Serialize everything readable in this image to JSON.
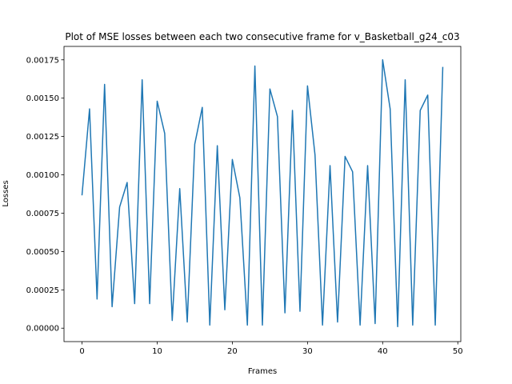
{
  "chart_data": {
    "type": "line",
    "title": "Plot of MSE losses between each two consecutive frame for v_Basketball_g24_c03",
    "xlabel": "Frames",
    "ylabel": "Losses",
    "xlim": [
      -2.4,
      50.4
    ],
    "ylim": [
      -8.75e-05,
      0.0018375
    ],
    "xticks": [
      0,
      10,
      20,
      30,
      40,
      50
    ],
    "xtick_labels": [
      "0",
      "10",
      "20",
      "30",
      "40",
      "50"
    ],
    "yticks": [
      0,
      0.00025,
      0.0005,
      0.00075,
      0.001,
      0.00125,
      0.0015,
      0.00175
    ],
    "ytick_labels": [
      "0.00000",
      "0.00025",
      "0.00050",
      "0.00075",
      "0.00100",
      "0.00125",
      "0.00150",
      "0.00175"
    ],
    "grid": false,
    "line_color": "#1f77b4",
    "series": [
      {
        "x": [
          0,
          1,
          2,
          3,
          4,
          5,
          6,
          7,
          8,
          9,
          10,
          11,
          12,
          13,
          14,
          15,
          16,
          17,
          18,
          19,
          20,
          21,
          22,
          23,
          24,
          25,
          26,
          27,
          28,
          29,
          30,
          31,
          32,
          33,
          34,
          35,
          36,
          37,
          38,
          39,
          40,
          41,
          42,
          43,
          44,
          45,
          46,
          47,
          48
        ],
        "values": [
          0.00087,
          0.00143,
          0.00019,
          0.00159,
          0.00014,
          0.00079,
          0.00095,
          0.00016,
          0.00162,
          0.00016,
          0.00148,
          0.00127,
          5e-05,
          0.00091,
          4e-05,
          0.0012,
          0.00144,
          2e-05,
          0.00119,
          0.00012,
          0.0011,
          0.00085,
          2e-05,
          0.00171,
          2e-05,
          0.00156,
          0.00138,
          0.0001,
          0.00142,
          0.00011,
          0.00158,
          0.00113,
          2e-05,
          0.00106,
          4e-05,
          0.00112,
          0.00102,
          2e-05,
          0.00106,
          3e-05,
          0.00175,
          0.00143,
          1e-05,
          0.00162,
          2e-05,
          0.00142,
          0.00152,
          2e-05,
          0.0017
        ]
      }
    ]
  }
}
